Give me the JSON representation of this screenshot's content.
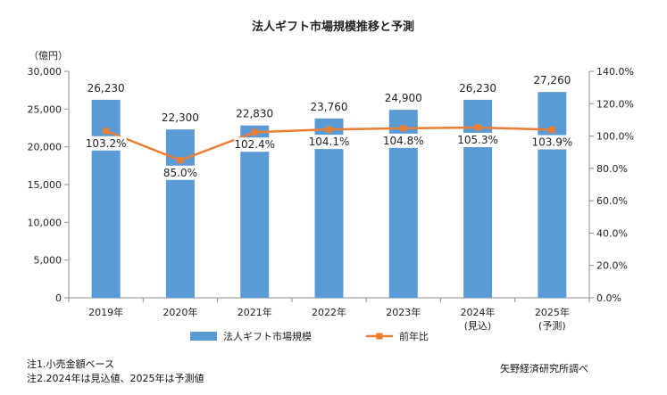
{
  "chart_data": {
    "type": "bar+line",
    "title": "法人ギフト市場規模推移と予測",
    "y_unit_label": "（億円）",
    "categories": [
      [
        "2019年"
      ],
      [
        "2020年"
      ],
      [
        "2021年"
      ],
      [
        "2022年"
      ],
      [
        "2023年"
      ],
      [
        "2024年",
        "(見込)"
      ],
      [
        "2025年",
        "(予測)"
      ]
    ],
    "series": [
      {
        "name": "法人ギフト市場規模",
        "kind": "bar",
        "axis": "left",
        "color": "#5b9bd5",
        "values": [
          26230,
          22300,
          22830,
          23760,
          24900,
          26230,
          27260
        ],
        "labels": [
          "26,230",
          "22,300",
          "22,830",
          "23,760",
          "24,900",
          "26,230",
          "27,260"
        ]
      },
      {
        "name": "前年比",
        "kind": "line",
        "axis": "right",
        "color": "#ed7d31",
        "values": [
          103.2,
          85.0,
          102.4,
          104.1,
          104.8,
          105.3,
          103.9
        ],
        "labels": [
          "103.2%",
          "85.0%",
          "102.4%",
          "104.1%",
          "104.8%",
          "105.3%",
          "103.9%"
        ]
      }
    ],
    "y_left": {
      "min": 0,
      "max": 30000,
      "ticks": [
        0,
        5000,
        10000,
        15000,
        20000,
        25000,
        30000
      ],
      "tick_labels": [
        "0",
        "5,000",
        "10,000",
        "15,000",
        "20,000",
        "25,000",
        "30,000"
      ]
    },
    "y_right": {
      "min": 0,
      "max": 140,
      "ticks": [
        0,
        20,
        40,
        60,
        80,
        100,
        120,
        140
      ],
      "tick_labels": [
        "0.0%",
        "20.0%",
        "40.0%",
        "60.0%",
        "80.0%",
        "100.0%",
        "120.0%",
        "140.0%"
      ]
    },
    "grid": false,
    "legend": "bottom-center"
  },
  "notes": {
    "note1": "注1.小売金額ベース",
    "note2": "注2.2024年は見込値、2025年は予測値",
    "source": "矢野経済研究所調べ"
  }
}
